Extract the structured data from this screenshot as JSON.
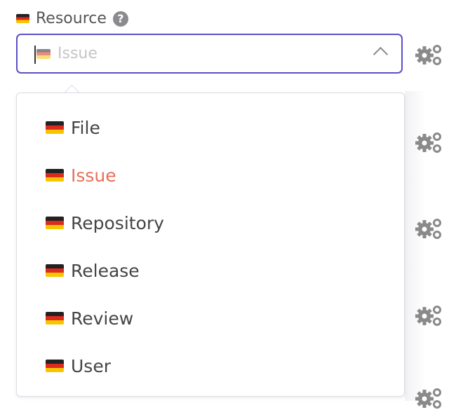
{
  "field": {
    "label": "Resource",
    "help_icon": "question-circle-icon",
    "placeholder": "Issue",
    "expanded": true
  },
  "options": [
    {
      "label": "File",
      "selected": false
    },
    {
      "label": "Issue",
      "selected": true
    },
    {
      "label": "Repository",
      "selected": false
    },
    {
      "label": "Release",
      "selected": false
    },
    {
      "label": "Review",
      "selected": false
    },
    {
      "label": "User",
      "selected": false
    }
  ],
  "colors": {
    "focus_border": "#5b4fc6",
    "selected_option": "#e8705a",
    "gear": "#8a8a8a"
  },
  "icons": {
    "flag": "german-flag-icon",
    "settings": "gears-icon"
  }
}
